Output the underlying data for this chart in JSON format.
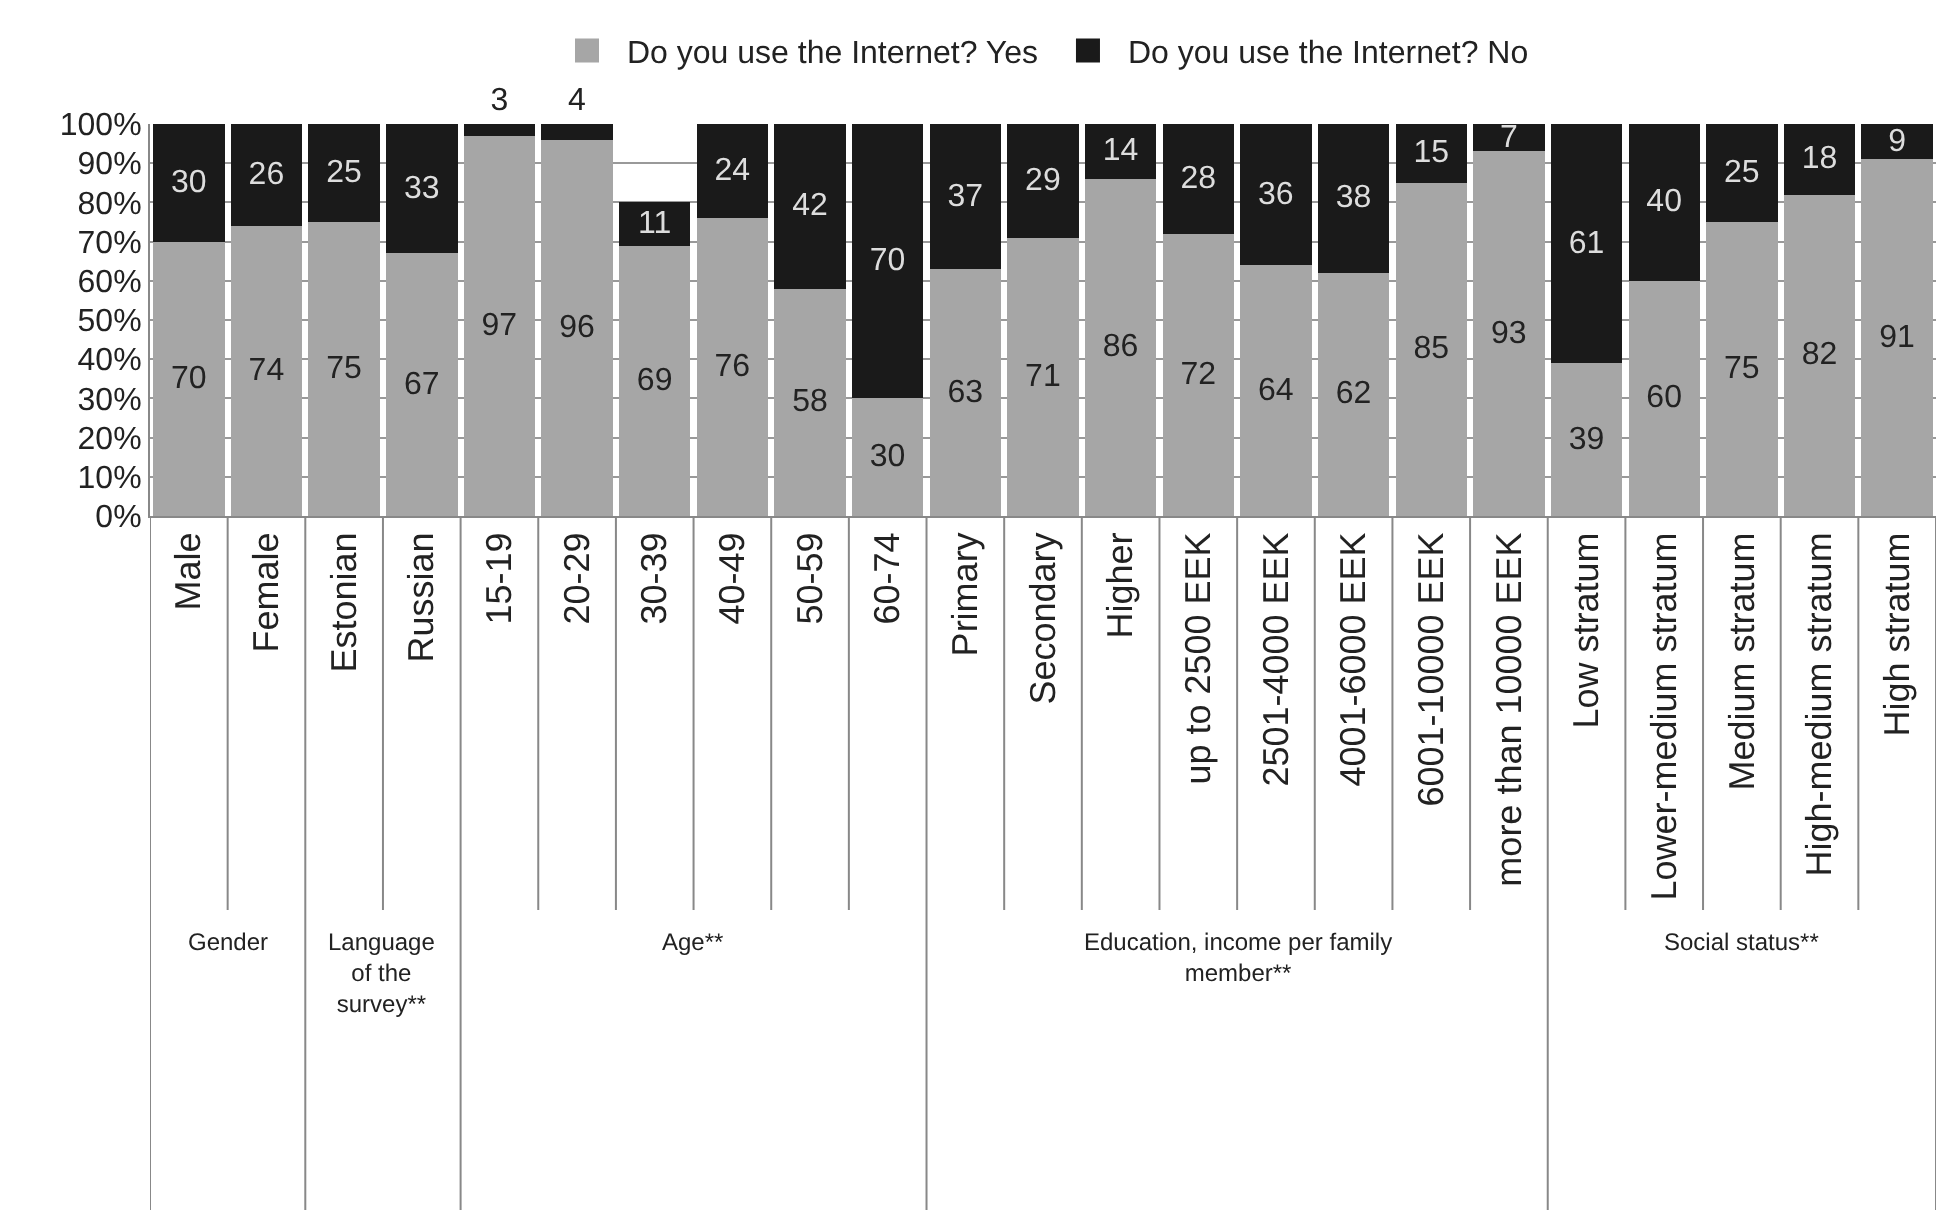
{
  "chart_data": {
    "type": "bar",
    "stacked": true,
    "categories": [
      "Male",
      "Female",
      "Estonian",
      "Russian",
      "15-19",
      "20-29",
      "30-39",
      "40-49",
      "50-59",
      "60-74",
      "Primary",
      "Secondary",
      "Higher",
      "up to 2500 EEK",
      "2501-4000 EEK",
      "4001-6000 EEK",
      "6001-10000 EEK",
      "more than 10000 EEK",
      "Low stratum",
      "Lower-medium stratum",
      "Medium stratum",
      "High-medium stratum",
      "High stratum"
    ],
    "series": [
      {
        "name": "Do you use the Internet? Yes",
        "color": "#a6a6a6",
        "values": [
          70,
          74,
          75,
          67,
          97,
          96,
          69,
          76,
          58,
          30,
          63,
          71,
          86,
          72,
          64,
          62,
          85,
          93,
          39,
          60,
          75,
          82,
          91
        ],
        "value_labels": [
          "70",
          "74",
          "75",
          "67",
          "97",
          "96",
          "69",
          "76",
          "58",
          "30",
          "63",
          "71",
          "86",
          "72",
          "64",
          "62",
          "85",
          "93",
          "39",
          "60",
          "75",
          "82",
          "91"
        ]
      },
      {
        "name": "Do you use the Internet? No",
        "color": "#1a1a1a",
        "values": [
          30,
          26,
          25,
          33,
          3,
          4,
          11,
          24,
          42,
          70,
          37,
          29,
          14,
          28,
          36,
          38,
          15,
          7,
          61,
          40,
          25,
          18,
          9
        ],
        "value_labels": [
          "30",
          "26",
          "25",
          "33",
          "3",
          "4",
          "11",
          "24",
          "42",
          "70",
          "37",
          "29",
          "14",
          "28",
          "36",
          "38",
          "15",
          "7",
          "61",
          "40",
          "25",
          "18",
          "9"
        ]
      }
    ],
    "ylim": [
      0,
      100
    ],
    "yticks": [
      {
        "value": 0,
        "label": "0%"
      },
      {
        "value": 10,
        "label": "10%"
      },
      {
        "value": 20,
        "label": "20%"
      },
      {
        "value": 30,
        "label": "30%"
      },
      {
        "value": 40,
        "label": "40%"
      },
      {
        "value": 50,
        "label": "50%"
      },
      {
        "value": 60,
        "label": "60%"
      },
      {
        "value": 70,
        "label": "70%"
      },
      {
        "value": 80,
        "label": "80%"
      },
      {
        "value": 90,
        "label": "90%"
      },
      {
        "value": 100,
        "label": "100%"
      }
    ],
    "grid": "y",
    "legend": "top",
    "annotations": [
      "Gender",
      "Language of the survey**",
      "Age**",
      "Education, income per family member**",
      "Social status**"
    ]
  }
}
